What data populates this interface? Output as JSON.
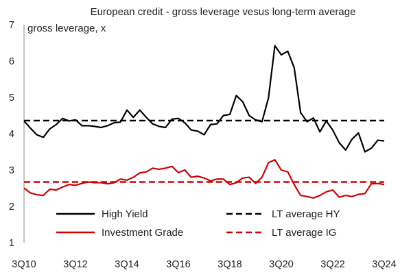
{
  "chart_data": {
    "type": "line",
    "title": "European credit - gross leverage vesus long-term average",
    "ylabel": "gross leverage, x",
    "xlabel": "",
    "ylim": [
      1,
      7
    ],
    "yticks": [
      1,
      2,
      3,
      4,
      5,
      6,
      7
    ],
    "x_tick_labels": [
      "3Q10",
      "3Q12",
      "3Q14",
      "3Q16",
      "3Q18",
      "3Q20",
      "3Q22",
      "3Q24"
    ],
    "x_tick_indices": [
      0,
      8,
      16,
      24,
      32,
      40,
      48,
      56
    ],
    "x_range": [
      0,
      56
    ],
    "grid": false,
    "legend_position": "bottom",
    "series": [
      {
        "name": "High Yield",
        "color": "#000000",
        "style": "solid",
        "values": [
          4.35,
          4.15,
          3.97,
          3.9,
          4.13,
          4.25,
          4.42,
          4.35,
          4.38,
          4.22,
          4.22,
          4.2,
          4.17,
          4.22,
          4.3,
          4.32,
          4.65,
          4.45,
          4.65,
          4.45,
          4.27,
          4.2,
          4.17,
          4.4,
          4.42,
          4.3,
          4.1,
          4.07,
          3.97,
          4.25,
          4.27,
          4.5,
          4.53,
          5.05,
          4.88,
          4.5,
          4.38,
          4.33,
          4.98,
          6.42,
          6.17,
          6.27,
          5.82,
          4.58,
          4.33,
          4.43,
          4.05,
          4.35,
          4.1,
          3.75,
          3.55,
          3.85,
          4.02,
          3.5,
          3.6,
          3.82,
          3.8
        ]
      },
      {
        "name": "Investment Grade",
        "color": "#d00000",
        "style": "solid",
        "values": [
          2.5,
          2.37,
          2.32,
          2.3,
          2.47,
          2.45,
          2.53,
          2.6,
          2.58,
          2.63,
          2.67,
          2.65,
          2.65,
          2.62,
          2.65,
          2.75,
          2.72,
          2.8,
          2.92,
          2.95,
          3.05,
          3.02,
          3.05,
          3.1,
          2.93,
          3.0,
          2.8,
          2.83,
          2.78,
          2.7,
          2.75,
          2.75,
          2.6,
          2.65,
          2.78,
          2.8,
          2.63,
          2.8,
          3.2,
          3.28,
          3.0,
          2.95,
          2.6,
          2.3,
          2.27,
          2.23,
          2.3,
          2.4,
          2.45,
          2.25,
          2.3,
          2.27,
          2.33,
          2.35,
          2.62,
          2.63,
          2.6
        ]
      },
      {
        "name": "LT average HY",
        "color": "#000000",
        "style": "dashed",
        "values": [
          4.36,
          4.36
        ]
      },
      {
        "name": "LT average IG",
        "color": "#d00000",
        "style": "dashed",
        "values": [
          2.67,
          2.67
        ]
      }
    ]
  }
}
